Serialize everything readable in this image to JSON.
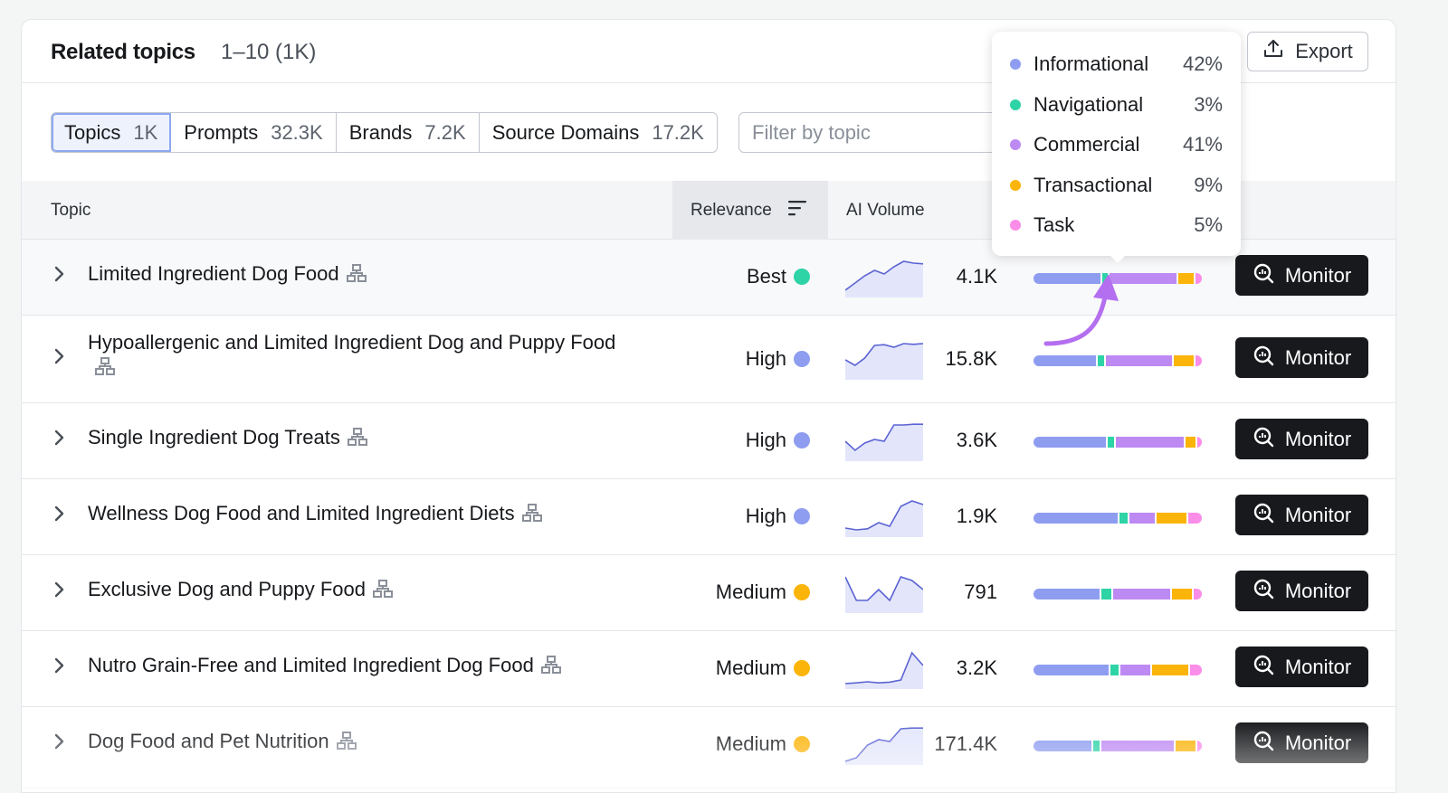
{
  "header": {
    "title": "Related topics",
    "range": "1–10 (1K)",
    "export_label": "Export"
  },
  "tabs": [
    {
      "label": "Topics",
      "count": "1K"
    },
    {
      "label": "Prompts",
      "count": "32.3K"
    },
    {
      "label": "Brands",
      "count": "7.2K"
    },
    {
      "label": "Source Domains",
      "count": "17.2K"
    }
  ],
  "filter": {
    "placeholder": "Filter by topic"
  },
  "table": {
    "columns": {
      "topic": "Topic",
      "relevance": "Relevance",
      "ai_volume": "AI Volume"
    },
    "monitor_label": "Monitor",
    "rows": [
      {
        "topic": "Limited Ingredient Dog Food",
        "relevance": "Best",
        "volume": "4.1K",
        "intent": [
          40,
          3,
          40,
          9,
          4
        ],
        "spark": [
          0.15,
          0.35,
          0.55,
          0.7,
          0.6,
          0.8,
          0.95,
          0.9,
          0.88
        ]
      },
      {
        "topic": "Hypoallergenic and Limited Ingredient Dog and Puppy Food",
        "relevance": "High",
        "volume": "15.8K",
        "intent": [
          38,
          4,
          40,
          12,
          4
        ],
        "spark": [
          0.5,
          0.35,
          0.55,
          0.9,
          0.92,
          0.85,
          0.95,
          0.93,
          0.95
        ]
      },
      {
        "topic": "Single Ingredient Dog Treats",
        "relevance": "High",
        "volume": "3.6K",
        "intent": [
          44,
          4,
          41,
          6,
          3
        ],
        "spark": [
          0.5,
          0.25,
          0.45,
          0.55,
          0.5,
          0.95,
          0.95,
          0.97,
          0.97
        ]
      },
      {
        "topic": "Wellness Dog Food and Limited Ingredient Diets",
        "relevance": "High",
        "volume": "1.9K",
        "intent": [
          50,
          5,
          15,
          18,
          8
        ],
        "spark": [
          0.2,
          0.15,
          0.18,
          0.35,
          0.25,
          0.8,
          0.95,
          0.85
        ]
      },
      {
        "topic": "Exclusive Dog and Puppy Food",
        "relevance": "Medium",
        "volume": "791",
        "intent": [
          40,
          6,
          35,
          12,
          5
        ],
        "spark": [
          0.95,
          0.3,
          0.3,
          0.6,
          0.3,
          0.95,
          0.85,
          0.6
        ]
      },
      {
        "topic": "Nutro Grain-Free and Limited Ingredient Dog Food",
        "relevance": "Medium",
        "volume": "3.2K",
        "intent": [
          45,
          5,
          18,
          22,
          7
        ],
        "spark": [
          0.1,
          0.12,
          0.15,
          0.12,
          0.14,
          0.2,
          0.95,
          0.6
        ]
      },
      {
        "topic": "Dog Food and Pet Nutrition",
        "relevance": "Medium",
        "volume": "171.4K",
        "intent": [
          36,
          4,
          45,
          12,
          3
        ],
        "spark": [
          0.05,
          0.15,
          0.5,
          0.65,
          0.6,
          0.95,
          0.97,
          0.97
        ]
      }
    ]
  },
  "intent_tooltip": [
    {
      "label": "Informational",
      "value": "42%",
      "color": "#8e9df0"
    },
    {
      "label": "Navigational",
      "value": "3%",
      "color": "#2ed3a6"
    },
    {
      "label": "Commercial",
      "value": "41%",
      "color": "#bd8af3"
    },
    {
      "label": "Transactional",
      "value": "9%",
      "color": "#fbb409"
    },
    {
      "label": "Task",
      "value": "5%",
      "color": "#f98de8"
    }
  ],
  "relevance_colors": {
    "Best": "#2ed3a6",
    "High": "#8e9df0",
    "Medium": "#fbb409"
  }
}
